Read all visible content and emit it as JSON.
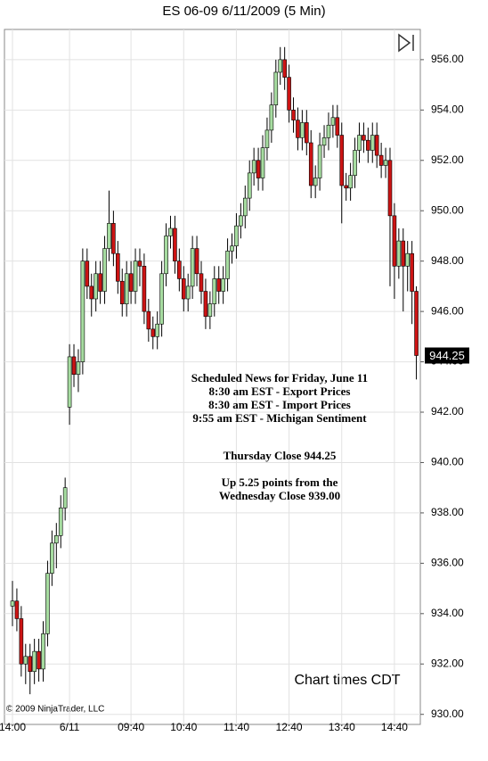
{
  "chart_data": {
    "type": "candlestick",
    "title": "ES 06-09  6/11/2009 (5 Min)",
    "categories": [
      "14:00",
      null,
      null,
      null,
      null,
      null,
      null,
      null,
      null,
      null,
      null,
      null,
      null,
      "6/11",
      null,
      null,
      null,
      null,
      null,
      null,
      null,
      null,
      null,
      null,
      null,
      null,
      null,
      "09:40",
      null,
      null,
      null,
      null,
      null,
      null,
      null,
      null,
      null,
      null,
      null,
      "10:40",
      null,
      null,
      null,
      null,
      null,
      null,
      null,
      null,
      null,
      null,
      null,
      "11:40",
      null,
      null,
      null,
      null,
      null,
      null,
      null,
      null,
      null,
      null,
      null,
      "12:40",
      null,
      null,
      null,
      null,
      null,
      null,
      null,
      null,
      null,
      null,
      null,
      "13:40",
      null,
      null,
      null,
      null,
      null,
      null,
      null,
      null,
      null,
      null,
      null,
      "14:40",
      null,
      null,
      null,
      null,
      null
    ],
    "open": [
      934.3,
      934.5,
      933.8,
      932.0,
      932.3,
      931.7,
      932.5,
      931.8,
      933.2,
      935.6,
      936.8,
      937.1,
      938.2,
      942.2,
      944.2,
      943.5,
      944.0,
      948.0,
      947.0,
      946.5,
      947.5,
      946.8,
      948.5,
      949.5,
      948.3,
      947.2,
      946.3,
      947.5,
      946.8,
      948.0,
      947.8,
      946.0,
      945.3,
      945.0,
      945.5,
      947.5,
      949.0,
      949.3,
      948.0,
      947.3,
      946.5,
      947.0,
      948.5,
      947.5,
      946.8,
      945.8,
      946.3,
      947.3,
      946.8,
      947.3,
      948.4,
      948.6,
      949.4,
      949.8,
      950.5,
      951.5,
      952.0,
      951.3,
      952.5,
      953.2,
      954.2,
      955.5,
      956.0,
      955.3,
      954.0,
      953.6,
      952.9,
      953.5,
      952.7,
      951.0,
      951.3,
      952.6,
      952.9,
      953.4,
      953.7,
      953.0,
      951.0,
      950.9,
      951.4,
      952.4,
      953.0,
      952.8,
      952.4,
      953.0,
      952.2,
      951.8,
      952.0,
      949.8,
      947.8,
      948.8,
      947.8,
      948.3,
      946.8
    ],
    "high": [
      935.3,
      935.0,
      934.3,
      932.8,
      932.8,
      933.0,
      933.0,
      933.7,
      936.1,
      937.3,
      937.6,
      938.7,
      939.4,
      944.7,
      944.7,
      944.5,
      948.5,
      948.5,
      947.5,
      948.0,
      948.0,
      949.0,
      950.8,
      950.0,
      948.8,
      947.7,
      948.0,
      948.0,
      948.5,
      948.5,
      948.3,
      946.5,
      945.8,
      946.0,
      948.0,
      949.5,
      949.8,
      949.8,
      948.5,
      947.8,
      947.5,
      949.0,
      949.0,
      948.0,
      947.3,
      946.8,
      947.8,
      947.8,
      947.8,
      948.9,
      949.1,
      949.9,
      950.3,
      951.0,
      952.0,
      952.5,
      952.5,
      953.0,
      953.7,
      954.7,
      956.0,
      956.5,
      956.5,
      955.8,
      954.5,
      954.1,
      954.0,
      954.0,
      953.2,
      951.8,
      953.1,
      953.4,
      953.9,
      954.2,
      954.2,
      953.5,
      951.5,
      951.9,
      952.9,
      953.5,
      953.5,
      953.3,
      953.5,
      953.5,
      952.7,
      952.5,
      952.5,
      950.3,
      949.3,
      949.3,
      948.8,
      948.8,
      947.0
    ],
    "low": [
      933.5,
      933.3,
      931.5,
      931.2,
      930.8,
      931.2,
      931.3,
      931.3,
      932.7,
      935.1,
      935.8,
      936.6,
      937.7,
      941.5,
      943.0,
      942.8,
      943.5,
      946.5,
      945.8,
      946.0,
      946.3,
      946.3,
      948.0,
      947.8,
      946.7,
      945.8,
      945.8,
      946.3,
      946.3,
      947.0,
      945.5,
      944.8,
      944.5,
      944.5,
      945.0,
      947.0,
      948.5,
      947.5,
      946.8,
      946.0,
      946.0,
      946.5,
      947.0,
      946.3,
      945.3,
      945.3,
      945.8,
      946.3,
      946.3,
      946.8,
      947.9,
      948.1,
      948.9,
      949.3,
      950.0,
      951.0,
      950.8,
      950.8,
      952.0,
      952.7,
      953.7,
      955.0,
      954.8,
      953.5,
      953.1,
      952.4,
      952.4,
      952.2,
      950.5,
      950.5,
      950.8,
      952.1,
      952.4,
      952.9,
      952.5,
      949.5,
      950.4,
      950.4,
      950.9,
      951.9,
      952.3,
      951.9,
      951.9,
      951.7,
      951.3,
      951.3,
      947.0,
      946.5,
      947.3,
      946.0,
      946.8,
      945.5,
      943.3
    ],
    "close": [
      934.5,
      933.8,
      932.0,
      932.3,
      931.7,
      932.5,
      931.8,
      933.2,
      935.6,
      936.8,
      937.1,
      938.2,
      939.0,
      944.2,
      943.5,
      944.0,
      948.0,
      947.0,
      946.5,
      947.5,
      946.8,
      948.5,
      949.5,
      948.3,
      947.2,
      946.3,
      947.5,
      946.8,
      948.0,
      947.8,
      946.0,
      945.3,
      945.0,
      945.5,
      947.5,
      949.0,
      949.3,
      948.0,
      947.3,
      946.5,
      947.0,
      948.5,
      947.5,
      946.8,
      945.8,
      946.3,
      947.3,
      946.8,
      947.3,
      948.4,
      948.6,
      949.4,
      949.8,
      950.5,
      951.5,
      952.0,
      951.3,
      952.5,
      953.2,
      954.2,
      955.5,
      956.0,
      955.3,
      954.0,
      953.6,
      952.9,
      953.5,
      952.7,
      951.0,
      951.3,
      952.6,
      952.9,
      953.4,
      953.7,
      953.0,
      951.0,
      950.9,
      951.4,
      952.4,
      953.0,
      952.8,
      952.4,
      953.0,
      952.2,
      951.8,
      952.0,
      949.8,
      947.8,
      948.8,
      947.8,
      948.3,
      946.8,
      944.25
    ],
    "up_color": "#a6dca0",
    "down_color": "#cc1414",
    "ylim": [
      929.6,
      957.2
    ],
    "yticks": [
      {
        "value": 930,
        "label": "930.00"
      },
      {
        "value": 932,
        "label": "932.00"
      },
      {
        "value": 934,
        "label": "934.00"
      },
      {
        "value": 936,
        "label": "936.00"
      },
      {
        "value": 938,
        "label": "938.00"
      },
      {
        "value": 940,
        "label": "940.00"
      },
      {
        "value": 942,
        "label": "942.00"
      },
      {
        "value": 944,
        "label": "944.00"
      },
      {
        "value": 946,
        "label": "946.00"
      },
      {
        "value": 948,
        "label": "948.00"
      },
      {
        "value": 950,
        "label": "950.00"
      },
      {
        "value": 952,
        "label": "952.00"
      },
      {
        "value": 954,
        "label": "954.00"
      },
      {
        "value": 956,
        "label": "956.00"
      }
    ],
    "grid": true,
    "annotations": [
      "Scheduled News for Friday, June 11",
      "8:30 am EST - Export Prices",
      "8:30 am EST - Import Prices",
      "9:55 am EST - Michigan Sentiment",
      "Thursday Close 944.25",
      "Up 5.25 points from the",
      "Wednesday Close 939.00"
    ],
    "note": "Chart times CDT",
    "copyright": "© 2009 NinjaTrader, LLC"
  }
}
